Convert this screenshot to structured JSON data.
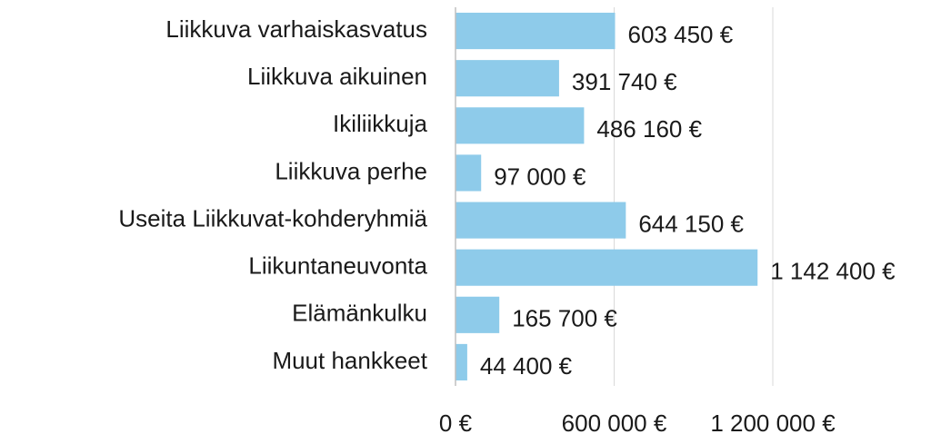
{
  "chart_data": {
    "type": "bar",
    "orientation": "horizontal",
    "categories": [
      "Liikkuva varhaiskasvatus",
      "Liikkuva aikuinen",
      "Ikiliikkuja",
      "Liikkuva perhe",
      "Useita Liikkuvat-kohderyhmiä",
      "Liikuntaneuvonta",
      "Elämänkulku",
      "Muut hankkeet"
    ],
    "values": [
      603450,
      391740,
      486160,
      97000,
      644150,
      1142400,
      165700,
      44400
    ],
    "value_labels": [
      "603 450 €",
      "391 740 €",
      "486 160 €",
      "97 000 €",
      "644 150 €",
      "1 142 400 €",
      "165 700 €",
      "44 400 €"
    ],
    "color": "#8ecbea",
    "xlim": [
      0,
      1200000
    ],
    "xticks": [
      {
        "value": 0,
        "label": "0 €"
      },
      {
        "value": 600000,
        "label": "600 000 €"
      },
      {
        "value": 1200000,
        "label": "1 200 000 €"
      }
    ],
    "grid": true
  }
}
